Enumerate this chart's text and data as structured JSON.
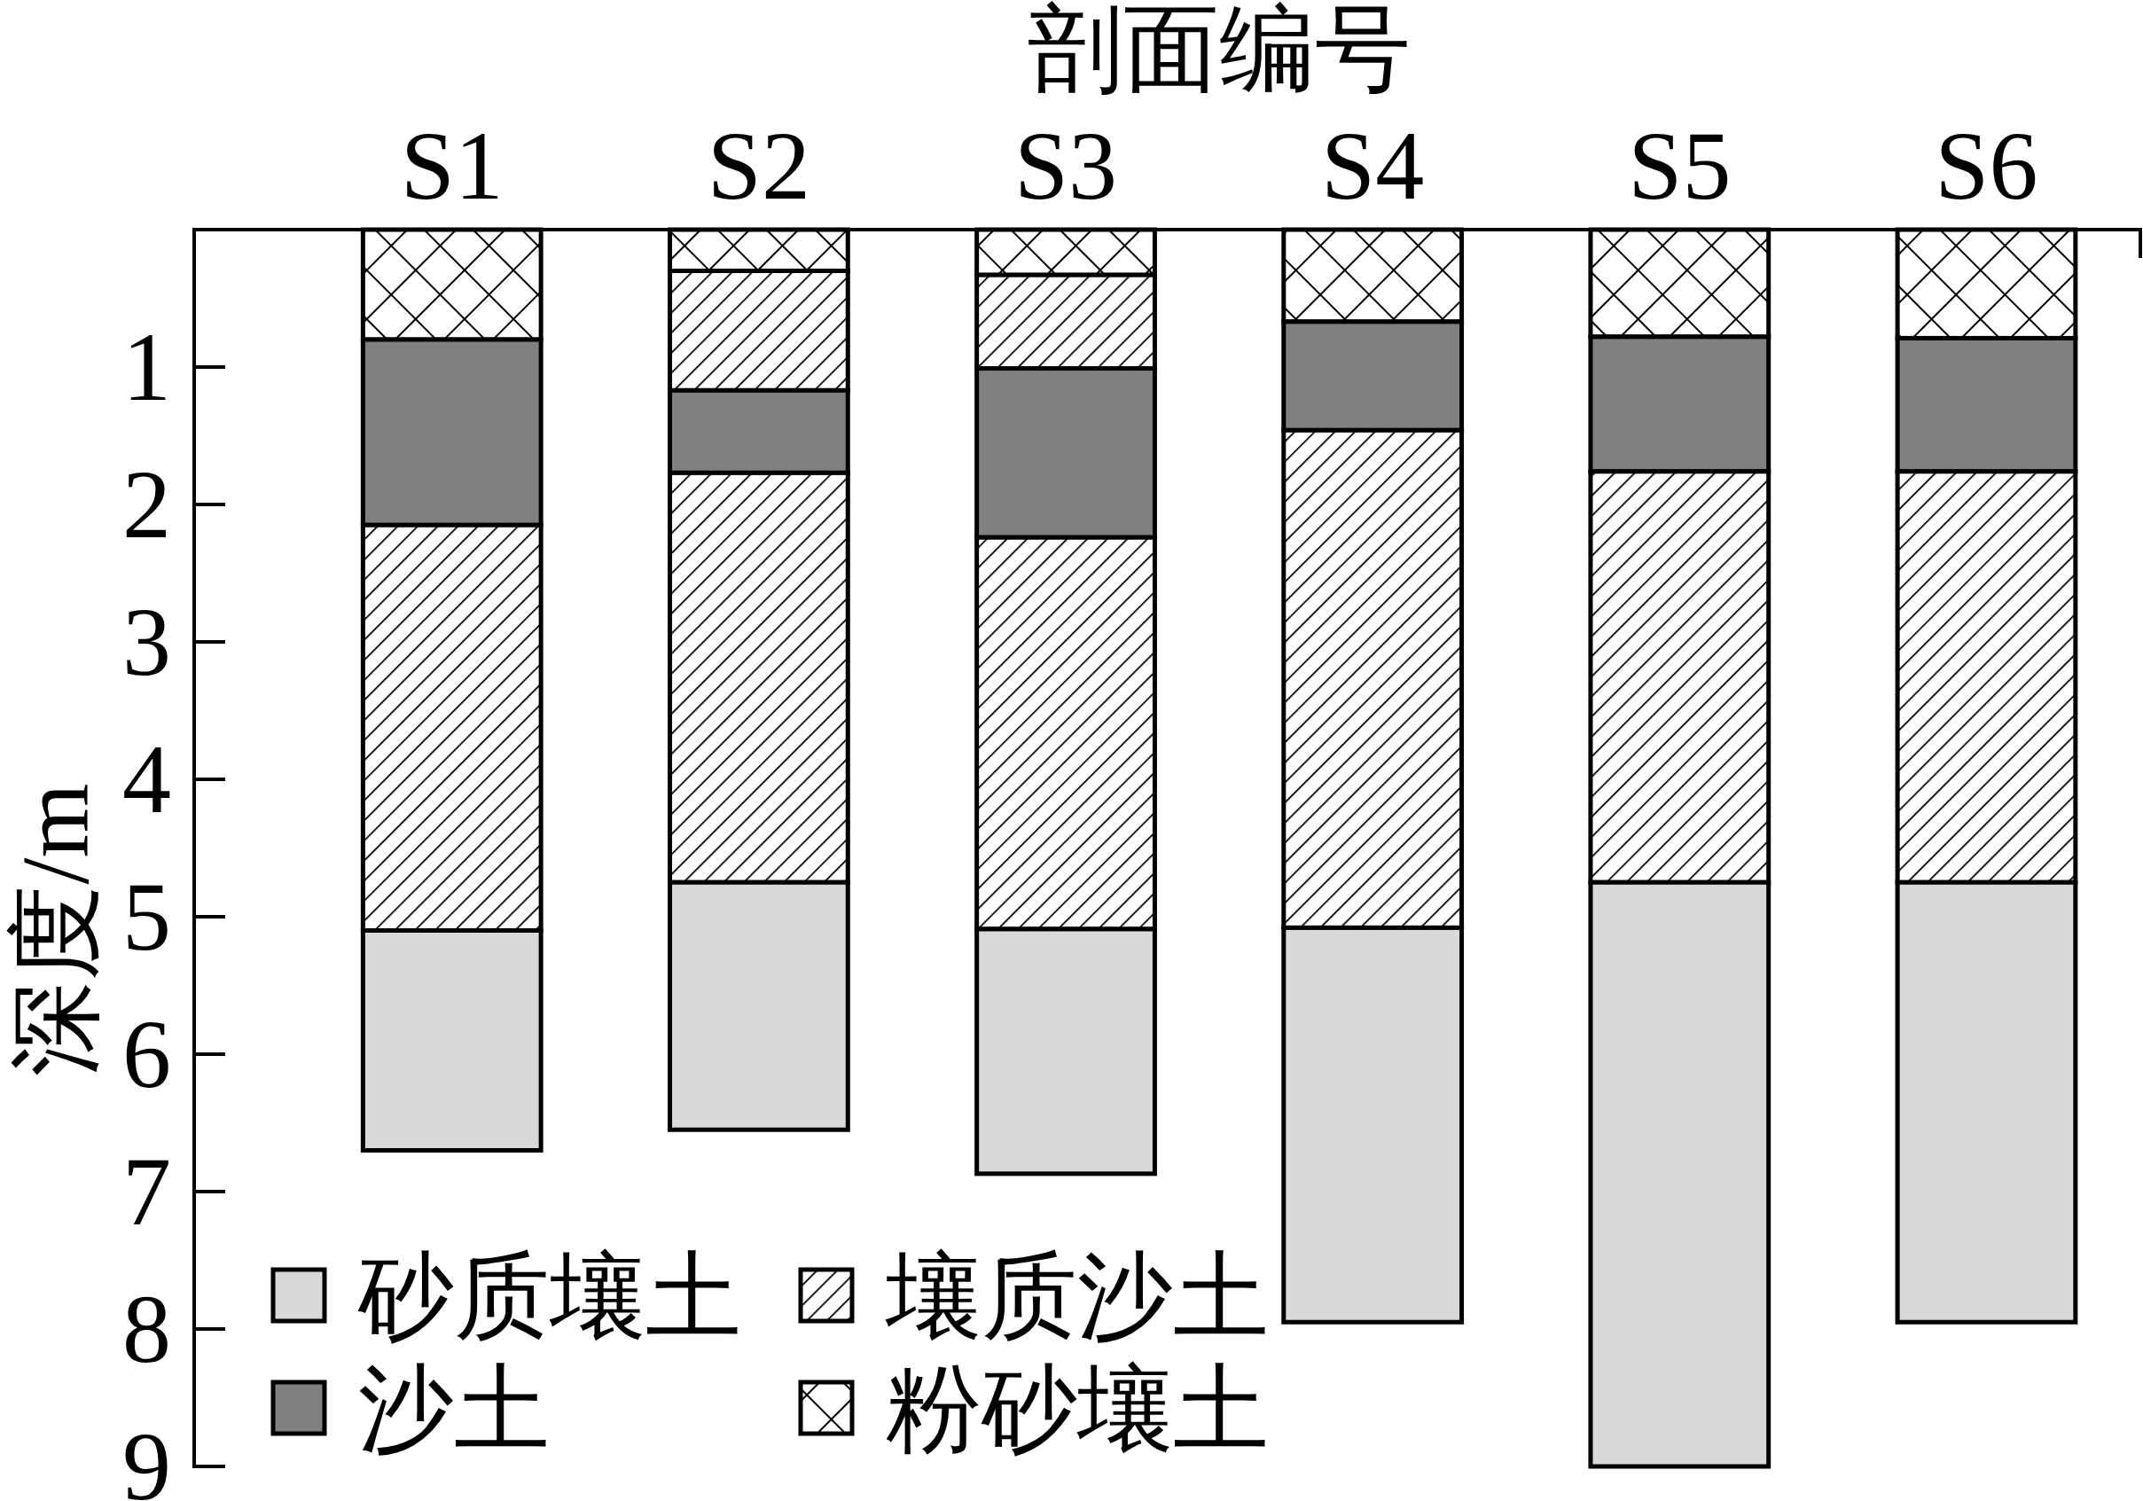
{
  "chart_data": {
    "type": "bar",
    "stacked": true,
    "xlabel": "剖面编号",
    "ylabel": "深度/m",
    "categories": [
      "S1",
      "S2",
      "S3",
      "S4",
      "S5",
      "S6"
    ],
    "series": [
      {
        "name": "粉砂壤土",
        "color": "#000000",
        "values": [
          0.8,
          0.3,
          0.33,
          0.67,
          0.78,
          0.79
        ]
      },
      {
        "color": "#000000",
        "values": [
          null,
          0.87,
          0.68,
          null,
          null,
          null
        ]
      },
      {
        "name": "沙土",
        "color": "#808080",
        "values": [
          1.35,
          0.6,
          1.23,
          0.79,
          0.98,
          0.97
        ]
      },
      {
        "name": "壤质沙土",
        "color": "#000000",
        "values": [
          2.95,
          2.98,
          2.85,
          3.62,
          2.99,
          2.99
        ]
      },
      {
        "name": "砂质壤土",
        "color": "#d9d9d9",
        "values": [
          1.6,
          1.8,
          1.78,
          2.87,
          4.25,
          3.2
        ]
      }
    ],
    "ylim": [
      9,
      0
    ],
    "yticks": [
      1,
      2,
      3,
      4,
      5,
      6,
      7,
      8,
      9
    ],
    "legend": "bottom left"
  }
}
